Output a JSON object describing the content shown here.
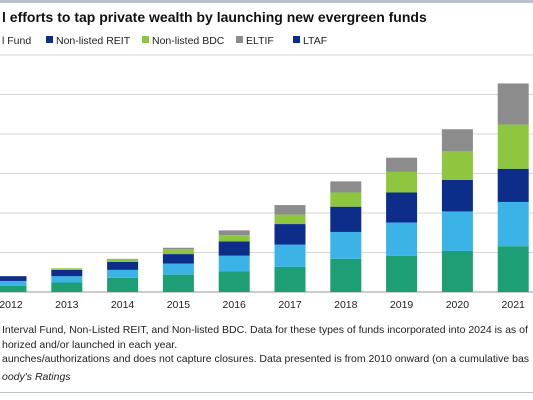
{
  "chart_data": {
    "type": "bar",
    "stacked": true,
    "title": "l efforts to tap private wealth by launching new evergreen funds",
    "xlabel": "",
    "ylabel": "",
    "categories": [
      "2012",
      "2013",
      "2014",
      "2015",
      "2016",
      "2017",
      "2018",
      "2019",
      "2020",
      "2021"
    ],
    "series": [
      {
        "name": "l Fund",
        "color": "#1e9e74",
        "values": [
          4,
          6,
          9,
          11,
          13,
          16,
          21,
          23,
          26,
          29
        ]
      },
      {
        "name": "",
        "color": "#3bb3e6",
        "values": [
          3,
          4,
          5,
          7,
          10,
          14,
          17,
          21,
          25,
          28
        ]
      },
      {
        "name": "Non-listed REIT",
        "color": "#0c2d8a",
        "values": [
          3,
          4,
          5,
          6,
          9,
          13,
          16,
          19,
          20,
          21
        ]
      },
      {
        "name": "Non-listed BDC",
        "color": "#8ec63f",
        "values": [
          0,
          1,
          2,
          3,
          4,
          6,
          9,
          13,
          18,
          28
        ]
      },
      {
        "name": "ELTIF",
        "color": "#8c8c8c",
        "values": [
          0,
          0,
          0,
          1,
          3,
          6,
          7,
          9,
          14,
          26
        ]
      },
      {
        "name": "LTAF",
        "color": "#0c2d8a",
        "values": [
          0,
          0,
          0,
          0,
          0,
          0,
          0,
          0,
          0,
          0
        ]
      }
    ],
    "ylim": [
      0,
      150
    ],
    "grid": true,
    "legend_position": "top"
  },
  "notes": [
    "Interval Fund, Non-Listed REIT, and Non-listed BDC. Data for these types of funds incorporated into 2024 is as of",
    "horized and/or launched in each year.",
    "aunches/authorizations and does not capture closures. Data presented is from 2010 onward (on a cumulative bas"
  ],
  "source": "oody's Ratings"
}
